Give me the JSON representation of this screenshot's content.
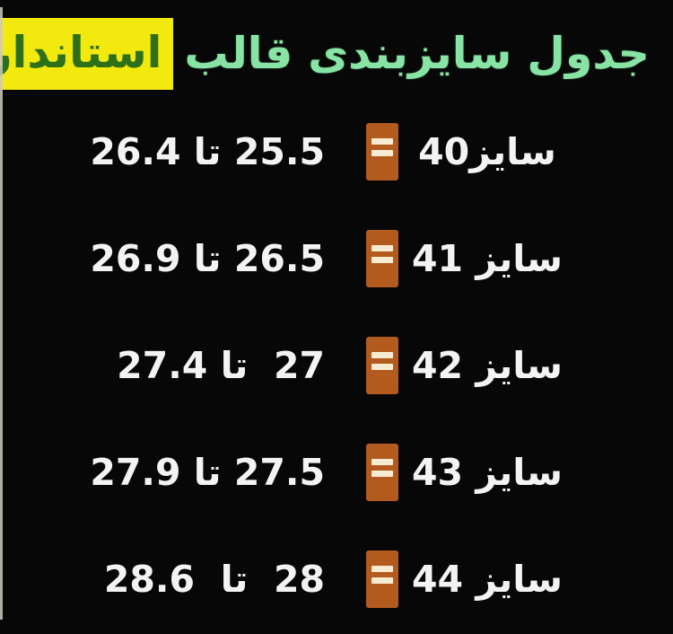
{
  "page": {
    "background_color": "#070707",
    "text_color": "#f3f3f3"
  },
  "title": {
    "main_text": "جدول سایزبندی قالب",
    "main_color": "#87e4a4",
    "highlight_text": "استاندارد",
    "highlight_bg_color": "#f2e90e",
    "highlight_text_color": "#2e7019"
  },
  "equals_badge": {
    "symbol": "=",
    "bg_color": "#b35b1e",
    "bar_color": "#f7ecd2"
  },
  "rows": [
    {
      "size_label": "سایز40",
      "range": "25.5 تا 26.4"
    },
    {
      "size_label": "سایز 41",
      "range": "26.5 تا 26.9"
    },
    {
      "size_label": "سایز 42",
      "range": "27  تا 27.4"
    },
    {
      "size_label": "سایز 43",
      "range": "27.5 تا 27.9"
    },
    {
      "size_label": "سایز 44",
      "range": "28  تا  28.6"
    }
  ],
  "chart_data": {
    "type": "table",
    "title": "جدول سایزبندی قالب استاندارد",
    "separator_word": "تا",
    "rows": [
      {
        "size": 40,
        "min": 25.5,
        "max": 26.4
      },
      {
        "size": 41,
        "min": 26.5,
        "max": 26.9
      },
      {
        "size": 42,
        "min": 27,
        "max": 27.4
      },
      {
        "size": 43,
        "min": 27.5,
        "max": 27.9
      },
      {
        "size": 44,
        "min": 28,
        "max": 28.6
      }
    ]
  }
}
